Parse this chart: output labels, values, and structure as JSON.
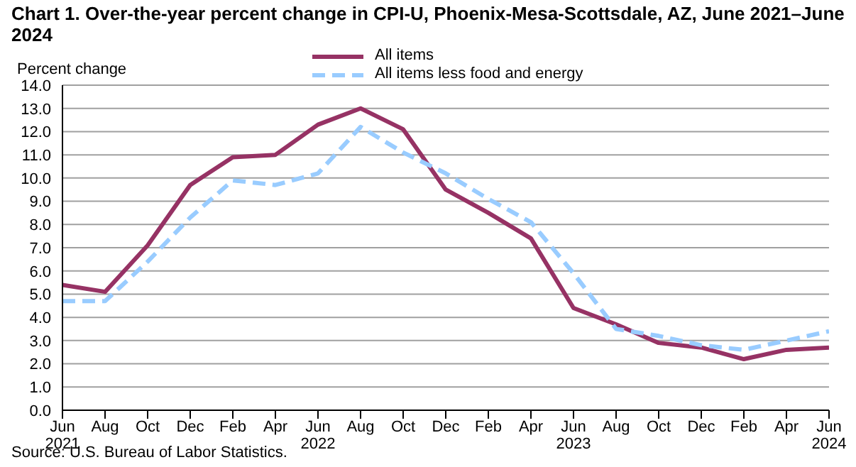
{
  "chart_data": {
    "type": "line",
    "title": "Chart 1. Over-the-year percent change in CPI-U, Phoenix-Mesa-Scottsdale, AZ, June 2021–June 2024",
    "ylabel": "Percent change",
    "annotations": [
      "Source: U.S. Bureau of Labor Statistics."
    ],
    "categories": [
      "Jun\n2021",
      "Aug",
      "Oct",
      "Dec",
      "Feb",
      "Apr",
      "Jun\n2022",
      "Aug",
      "Oct",
      "Dec",
      "Feb",
      "Apr",
      "Jun\n2023",
      "Aug",
      "Oct",
      "Dec",
      "Feb",
      "Apr",
      "Jun\n2024"
    ],
    "series": [
      {
        "name": "All items",
        "color": "#963264",
        "line_style": "solid",
        "values": [
          5.4,
          5.1,
          7.1,
          9.7,
          10.9,
          11.0,
          12.3,
          13.0,
          12.1,
          9.5,
          8.5,
          7.4,
          4.4,
          3.7,
          2.9,
          2.7,
          2.2,
          2.6,
          2.7
        ]
      },
      {
        "name": "All items less food and energy",
        "color": "#99ccff",
        "line_style": "dashed",
        "values": [
          4.7,
          4.7,
          6.4,
          8.3,
          9.9,
          9.7,
          10.2,
          12.2,
          11.1,
          10.2,
          9.1,
          8.1,
          5.9,
          3.5,
          3.2,
          2.8,
          2.6,
          3.0,
          3.4
        ]
      }
    ],
    "ylim": [
      0,
      14
    ],
    "yticks": [
      {
        "value": 0,
        "label": "0.0"
      },
      {
        "value": 1,
        "label": "1.0"
      },
      {
        "value": 2,
        "label": "2.0"
      },
      {
        "value": 3,
        "label": "3.0"
      },
      {
        "value": 4,
        "label": "4.0"
      },
      {
        "value": 5,
        "label": "5.0"
      },
      {
        "value": 6,
        "label": "6.0"
      },
      {
        "value": 7,
        "label": "7.0"
      },
      {
        "value": 8,
        "label": "8.0"
      },
      {
        "value": 9,
        "label": "9.0"
      },
      {
        "value": 10,
        "label": "10.0"
      },
      {
        "value": 11,
        "label": "11.0"
      },
      {
        "value": 12,
        "label": "12.0"
      },
      {
        "value": 13,
        "label": "13.0"
      },
      {
        "value": 14,
        "label": "14.0"
      }
    ],
    "grid": "y",
    "legend": "top",
    "marker": "none"
  }
}
